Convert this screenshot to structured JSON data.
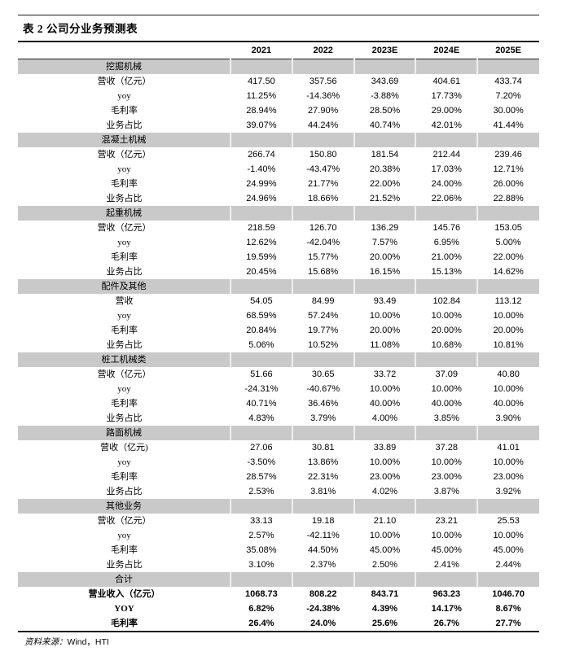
{
  "title": "表 2 公司分业务预测表",
  "columns": [
    "2021",
    "2022",
    "2023E",
    "2024E",
    "2025E"
  ],
  "sections": [
    {
      "name": "挖掘机械",
      "bold": false,
      "rows": [
        {
          "label": "营收（亿元）",
          "values": [
            "417.50",
            "357.56",
            "343.69",
            "404.61",
            "433.74"
          ]
        },
        {
          "label": "yoy",
          "values": [
            "11.25%",
            "-14.36%",
            "-3.88%",
            "17.73%",
            "7.20%"
          ]
        },
        {
          "label": "毛利率",
          "values": [
            "28.94%",
            "27.90%",
            "28.50%",
            "29.00%",
            "30.00%"
          ]
        },
        {
          "label": "业务占比",
          "values": [
            "39.07%",
            "44.24%",
            "40.74%",
            "42.01%",
            "41.44%"
          ]
        }
      ]
    },
    {
      "name": "混凝土机械",
      "bold": false,
      "rows": [
        {
          "label": "营收（亿元）",
          "values": [
            "266.74",
            "150.80",
            "181.54",
            "212.44",
            "239.46"
          ]
        },
        {
          "label": "yoy",
          "values": [
            "-1.40%",
            "-43.47%",
            "20.38%",
            "17.03%",
            "12.71%"
          ]
        },
        {
          "label": "毛利率",
          "values": [
            "24.99%",
            "21.77%",
            "22.00%",
            "24.00%",
            "26.00%"
          ]
        },
        {
          "label": "业务占比",
          "values": [
            "24.96%",
            "18.66%",
            "21.52%",
            "22.06%",
            "22.88%"
          ]
        }
      ]
    },
    {
      "name": "起重机械",
      "bold": false,
      "rows": [
        {
          "label": "营收（亿元）",
          "values": [
            "218.59",
            "126.70",
            "136.29",
            "145.76",
            "153.05"
          ]
        },
        {
          "label": "yoy",
          "values": [
            "12.62%",
            "-42.04%",
            "7.57%",
            "6.95%",
            "5.00%"
          ]
        },
        {
          "label": "毛利率",
          "values": [
            "19.59%",
            "15.77%",
            "20.00%",
            "21.00%",
            "22.00%"
          ]
        },
        {
          "label": "业务占比",
          "values": [
            "20.45%",
            "15.68%",
            "16.15%",
            "15.13%",
            "14.62%"
          ]
        }
      ]
    },
    {
      "name": "配件及其他",
      "bold": false,
      "rows": [
        {
          "label": "营收",
          "values": [
            "54.05",
            "84.99",
            "93.49",
            "102.84",
            "113.12"
          ]
        },
        {
          "label": "yoy",
          "values": [
            "68.59%",
            "57.24%",
            "10.00%",
            "10.00%",
            "10.00%"
          ]
        },
        {
          "label": "毛利率",
          "values": [
            "20.84%",
            "19.77%",
            "20.00%",
            "20.00%",
            "20.00%"
          ]
        },
        {
          "label": "业务占比",
          "values": [
            "5.06%",
            "10.52%",
            "11.08%",
            "10.68%",
            "10.81%"
          ]
        }
      ]
    },
    {
      "name": "桩工机械类",
      "bold": false,
      "rows": [
        {
          "label": "营收（亿元）",
          "values": [
            "51.66",
            "30.65",
            "33.72",
            "37.09",
            "40.80"
          ]
        },
        {
          "label": "yoy",
          "values": [
            "-24.31%",
            "-40.67%",
            "10.00%",
            "10.00%",
            "10.00%"
          ]
        },
        {
          "label": "毛利率",
          "values": [
            "40.71%",
            "36.46%",
            "40.00%",
            "40.00%",
            "40.00%"
          ]
        },
        {
          "label": "业务占比",
          "values": [
            "4.83%",
            "3.79%",
            "4.00%",
            "3.85%",
            "3.90%"
          ]
        }
      ]
    },
    {
      "name": "路面机械",
      "bold": false,
      "rows": [
        {
          "label": "营收（亿元)",
          "values": [
            "27.06",
            "30.81",
            "33.89",
            "37.28",
            "41.01"
          ]
        },
        {
          "label": "yoy",
          "values": [
            "-3.50%",
            "13.86%",
            "10.00%",
            "10.00%",
            "10.00%"
          ]
        },
        {
          "label": "毛利率",
          "values": [
            "28.57%",
            "22.31%",
            "23.00%",
            "23.00%",
            "23.00%"
          ]
        },
        {
          "label": "业务占比",
          "values": [
            "2.53%",
            "3.81%",
            "4.02%",
            "3.87%",
            "3.92%"
          ]
        }
      ]
    },
    {
      "name": "其他业务",
      "bold": false,
      "rows": [
        {
          "label": "营收（亿元）",
          "values": [
            "33.13",
            "19.18",
            "21.10",
            "23.21",
            "25.53"
          ]
        },
        {
          "label": "yoy",
          "values": [
            "2.57%",
            "-42.11%",
            "10.00%",
            "10.00%",
            "10.00%"
          ]
        },
        {
          "label": "毛利率",
          "values": [
            "35.08%",
            "44.50%",
            "45.00%",
            "45.00%",
            "45.00%"
          ]
        },
        {
          "label": "业务占比",
          "values": [
            "3.10%",
            "2.37%",
            "2.50%",
            "2.41%",
            "2.44%"
          ]
        }
      ]
    },
    {
      "name": "合计",
      "bold": true,
      "rows": [
        {
          "label": "营业收入（亿元）",
          "values": [
            "1068.73",
            "808.22",
            "843.71",
            "963.23",
            "1046.70"
          ]
        },
        {
          "label": "YOY",
          "values": [
            "6.82%",
            "-24.38%",
            "4.39%",
            "14.17%",
            "8.67%"
          ]
        },
        {
          "label": "毛利率",
          "values": [
            "26.4%",
            "24.0%",
            "25.6%",
            "26.7%",
            "27.7%"
          ]
        }
      ]
    }
  ],
  "footer": {
    "source_label": "资料来源：",
    "source_value": "Wind，HTI"
  },
  "colors": {
    "section_band": "#c9c9c9",
    "band_separator": "#efefef",
    "rule": "#1a1a1a"
  }
}
